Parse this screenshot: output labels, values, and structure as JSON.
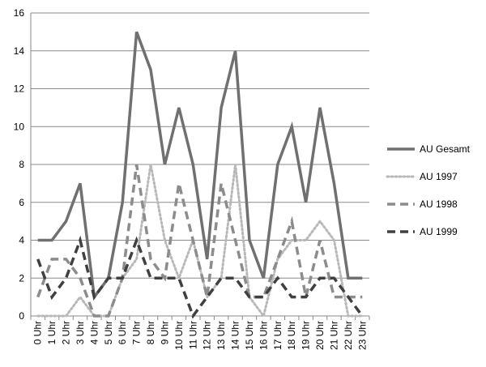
{
  "chart_data": {
    "type": "line",
    "categories": [
      "0 Uhr",
      "1 Uhr",
      "2 Uhr",
      "3 Uhr",
      "4 Uhr",
      "5 Uhr",
      "6 Uhr",
      "7 Uhr",
      "8 Uhr",
      "9 Uhr",
      "10 Uhr",
      "11 Uhr",
      "12 Uhr",
      "13 Uhr",
      "14 Uhr",
      "15 Uhr",
      "16 Uhr",
      "17 Uhr",
      "18 Uhr",
      "19 Uhr",
      "20 Uhr",
      "21 Uhr",
      "22 Uhr",
      "23 Uhr"
    ],
    "ylim": [
      0,
      16
    ],
    "yticks": [
      0,
      2,
      4,
      6,
      8,
      10,
      12,
      14,
      16
    ],
    "grid": true,
    "legend_position": "right",
    "series": [
      {
        "name": "AU Gesamt",
        "color": "#707070",
        "style": "solid",
        "values": [
          4,
          4,
          5,
          7,
          1,
          2,
          6,
          15,
          13,
          8,
          11,
          8,
          3,
          11,
          14,
          4,
          2,
          8,
          10,
          6,
          11,
          7,
          2,
          2
        ]
      },
      {
        "name": "AU 1997",
        "color": "#b8b8b8",
        "style": "dotted",
        "values": [
          0,
          0,
          0,
          1,
          0,
          0,
          2,
          3,
          8,
          4,
          2,
          4,
          1,
          2,
          8,
          1,
          0,
          3,
          4,
          4,
          5,
          4,
          0,
          0
        ]
      },
      {
        "name": "AU 1998",
        "color": "#8c8c8c",
        "style": "dashed",
        "values": [
          1,
          3,
          3,
          2,
          0,
          0,
          2,
          8,
          3,
          2,
          7,
          4,
          1,
          7,
          4,
          1,
          1,
          3,
          5,
          1,
          4,
          1,
          1,
          1
        ]
      },
      {
        "name": "AU 1999",
        "color": "#404040",
        "style": "dashed",
        "values": [
          3,
          1,
          2,
          4,
          1,
          2,
          2,
          4,
          2,
          2,
          2,
          0,
          1,
          2,
          2,
          1,
          1,
          2,
          1,
          1,
          2,
          2,
          1,
          0
        ]
      }
    ]
  }
}
